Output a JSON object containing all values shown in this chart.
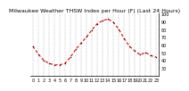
{
  "title": "Milwaukee Weather THSW Index per Hour (F) (Last 24 Hours)",
  "hours": [
    0,
    1,
    2,
    3,
    4,
    5,
    6,
    7,
    8,
    9,
    10,
    11,
    12,
    13,
    14,
    15,
    16,
    17,
    18,
    19,
    20,
    21,
    22,
    23
  ],
  "values": [
    58,
    48,
    40,
    36,
    34,
    34,
    36,
    44,
    54,
    62,
    70,
    79,
    87,
    91,
    93,
    89,
    80,
    68,
    58,
    52,
    47,
    50,
    46,
    44
  ],
  "line_color": "#dd0000",
  "marker_color": "#000000",
  "bg_color": "#ffffff",
  "grid_color": "#888888",
  "ylim_min": 20,
  "ylim_max": 100,
  "ytick_values": [
    30,
    40,
    50,
    60,
    70,
    80,
    90,
    100
  ],
  "ytick_labels": [
    "30",
    "40",
    "50",
    "60",
    "70",
    "80",
    "90",
    "100"
  ],
  "title_fontsize": 4.5,
  "tick_fontsize": 3.5
}
